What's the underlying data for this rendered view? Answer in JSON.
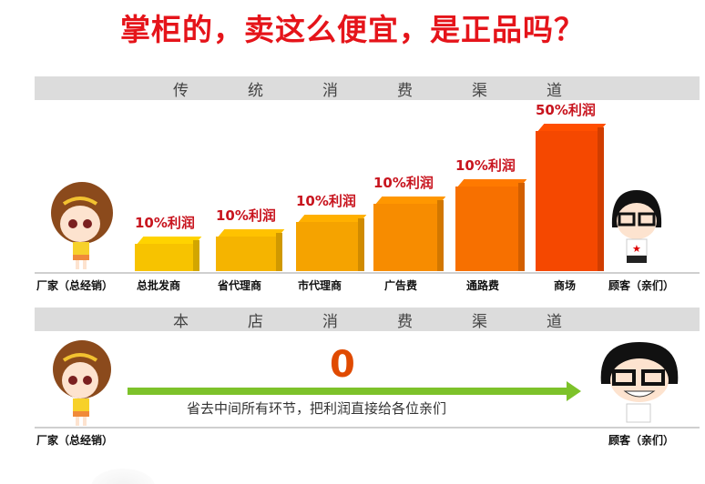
{
  "title": "掌柜的，卖这么便宜，是正品吗？",
  "traditional": {
    "header": [
      "传",
      "统",
      "消",
      "费",
      "渠",
      "道"
    ],
    "start_label": "厂家（总经销）",
    "end_label": "顾客（亲们）",
    "steps": [
      {
        "label": "总批发商",
        "profit": "10%利润",
        "color": "#f7c300"
      },
      {
        "label": "省代理商",
        "profit": "10%利润",
        "color": "#f5b400"
      },
      {
        "label": "市代理商",
        "profit": "10%利润",
        "color": "#f5a300"
      },
      {
        "label": "广告费",
        "profit": "10%利润",
        "color": "#f78c00"
      },
      {
        "label": "通路费",
        "profit": "10%利润",
        "color": "#f77000"
      },
      {
        "label": "商场",
        "profit": "50%利润",
        "color": "#f54800"
      }
    ]
  },
  "store": {
    "header": [
      "本",
      "店",
      "消",
      "费",
      "渠",
      "道"
    ],
    "middlemen": "0",
    "note": "省去中间所有环节，把利润直接给各位亲们",
    "start_label": "厂家（总经销）",
    "end_label": "顾客（亲们）",
    "arrow_color": "#7dc22a"
  }
}
